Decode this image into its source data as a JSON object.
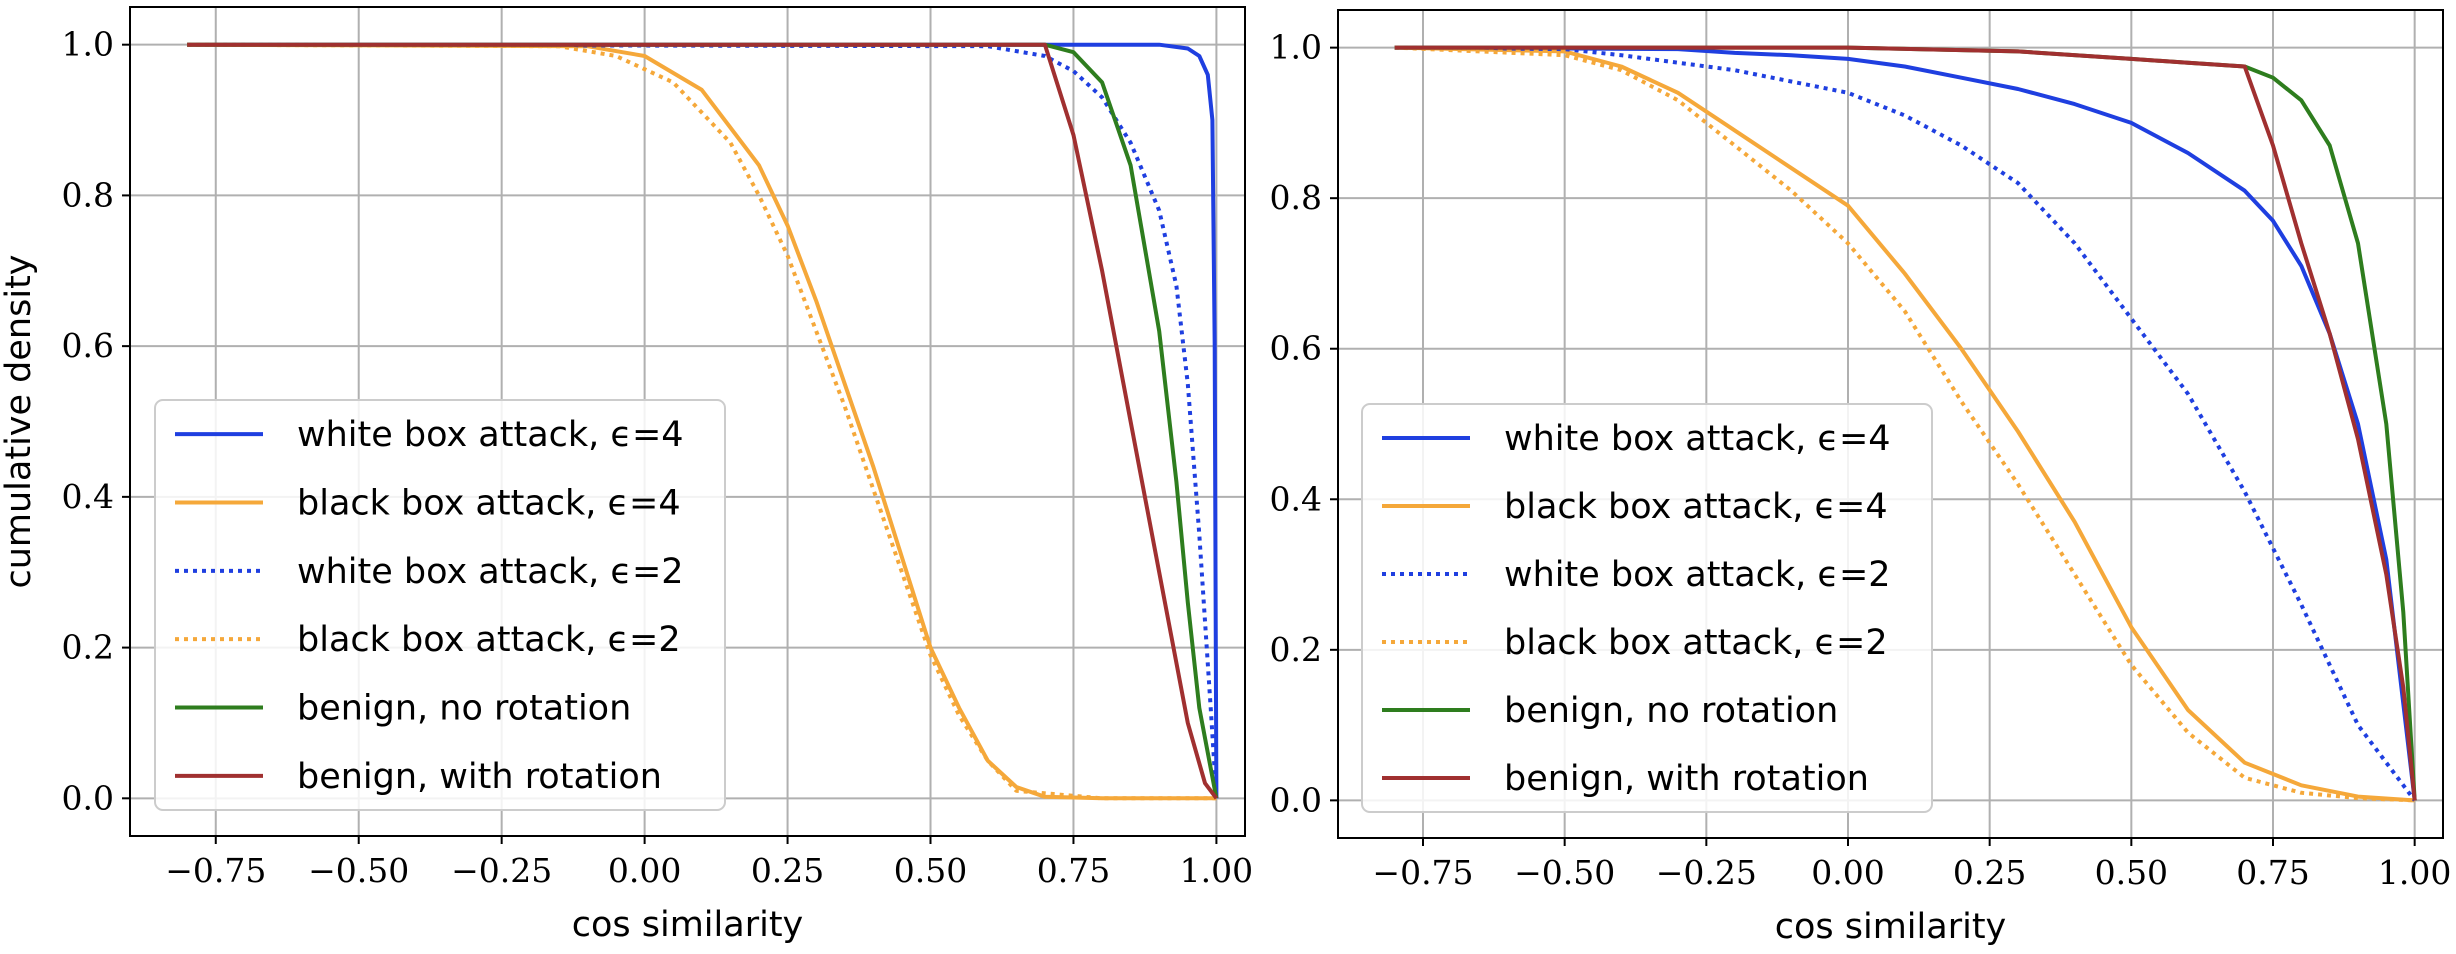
{
  "chart_data": [
    {
      "type": "line",
      "title": "",
      "xlabel": "cos similarity",
      "ylabel": "cumulative density",
      "xlim": [
        -0.9,
        1.05
      ],
      "ylim": [
        -0.05,
        1.05
      ],
      "xticks": [
        -0.75,
        -0.5,
        -0.25,
        0.0,
        0.25,
        0.5,
        0.75,
        1.0
      ],
      "xtick_labels": [
        "−0.75",
        "−0.50",
        "−0.25",
        "0.00",
        "0.25",
        "0.50",
        "0.75",
        "1.00"
      ],
      "yticks": [
        0.0,
        0.2,
        0.4,
        0.6,
        0.8,
        1.0
      ],
      "ytick_labels": [
        "0.0",
        "0.2",
        "0.4",
        "0.6",
        "0.8",
        "1.0"
      ],
      "grid": true,
      "legend": "lower-left",
      "series": [
        {
          "name": "white box attack, ϵ=4",
          "color": "#1f3fe0",
          "dash": "solid",
          "x": [
            -0.8,
            0.9,
            0.95,
            0.97,
            0.985,
            0.993,
            0.997,
            0.999,
            1.0
          ],
          "y": [
            1.0,
            1.0,
            0.995,
            0.985,
            0.96,
            0.9,
            0.6,
            0.2,
            0.0
          ]
        },
        {
          "name": "black box attack, ϵ=4",
          "color": "#f5a83a",
          "dash": "solid",
          "x": [
            -0.8,
            -0.1,
            0.0,
            0.1,
            0.2,
            0.25,
            0.3,
            0.35,
            0.4,
            0.45,
            0.5,
            0.55,
            0.6,
            0.65,
            0.7,
            0.8,
            1.0
          ],
          "y": [
            1.0,
            0.998,
            0.985,
            0.94,
            0.84,
            0.76,
            0.66,
            0.55,
            0.44,
            0.32,
            0.2,
            0.12,
            0.05,
            0.015,
            0.002,
            0.0,
            0.0
          ]
        },
        {
          "name": "white box attack, ϵ=2",
          "color": "#1f3fe0",
          "dash": "dotted",
          "x": [
            -0.8,
            0.6,
            0.7,
            0.75,
            0.8,
            0.85,
            0.9,
            0.93,
            0.95,
            0.97,
            0.99,
            1.0
          ],
          "y": [
            1.0,
            0.998,
            0.985,
            0.965,
            0.93,
            0.87,
            0.78,
            0.68,
            0.55,
            0.35,
            0.12,
            0.0
          ]
        },
        {
          "name": "black box attack, ϵ=2",
          "color": "#f5a83a",
          "dash": "dotted",
          "x": [
            -0.8,
            -0.15,
            -0.05,
            0.05,
            0.15,
            0.2,
            0.25,
            0.3,
            0.35,
            0.4,
            0.45,
            0.5,
            0.55,
            0.6,
            0.65,
            0.8,
            1.0
          ],
          "y": [
            1.0,
            0.998,
            0.985,
            0.95,
            0.87,
            0.8,
            0.72,
            0.62,
            0.52,
            0.41,
            0.3,
            0.19,
            0.11,
            0.05,
            0.01,
            0.0,
            0.0
          ]
        },
        {
          "name": "benign, no rotation",
          "color": "#2e7d1e",
          "dash": "solid",
          "x": [
            -0.8,
            0.7,
            0.75,
            0.8,
            0.85,
            0.9,
            0.93,
            0.95,
            0.97,
            1.0
          ],
          "y": [
            1.0,
            1.0,
            0.99,
            0.95,
            0.84,
            0.62,
            0.42,
            0.26,
            0.12,
            0.0
          ]
        },
        {
          "name": "benign, with rotation",
          "color": "#a03030",
          "dash": "solid",
          "x": [
            -0.8,
            0.7,
            0.75,
            0.8,
            0.85,
            0.9,
            0.95,
            0.98,
            1.0
          ],
          "y": [
            1.0,
            1.0,
            0.88,
            0.7,
            0.5,
            0.3,
            0.1,
            0.02,
            0.0
          ]
        }
      ]
    },
    {
      "type": "line",
      "title": "",
      "xlabel": "cos similarity",
      "ylabel": "",
      "xlim": [
        -0.9,
        1.05
      ],
      "ylim": [
        -0.05,
        1.05
      ],
      "xticks": [
        -0.75,
        -0.5,
        -0.25,
        0.0,
        0.25,
        0.5,
        0.75,
        1.0
      ],
      "xtick_labels": [
        "−0.75",
        "−0.50",
        "−0.25",
        "0.00",
        "0.25",
        "0.50",
        "0.75",
        "1.00"
      ],
      "yticks": [
        0.0,
        0.2,
        0.4,
        0.6,
        0.8,
        1.0
      ],
      "ytick_labels": [
        "0.0",
        "0.2",
        "0.4",
        "0.6",
        "0.8",
        "1.0"
      ],
      "grid": true,
      "legend": "lower-left",
      "series": [
        {
          "name": "white box attack, ϵ=4",
          "color": "#1f3fe0",
          "dash": "solid",
          "x": [
            -0.8,
            -0.3,
            -0.2,
            -0.1,
            0.0,
            0.1,
            0.2,
            0.3,
            0.4,
            0.5,
            0.6,
            0.7,
            0.75,
            0.8,
            0.85,
            0.9,
            0.95,
            1.0
          ],
          "y": [
            1.0,
            0.998,
            0.993,
            0.99,
            0.985,
            0.975,
            0.96,
            0.945,
            0.925,
            0.9,
            0.86,
            0.81,
            0.77,
            0.71,
            0.62,
            0.5,
            0.32,
            0.0
          ]
        },
        {
          "name": "black box attack, ϵ=4",
          "color": "#f5a83a",
          "dash": "solid",
          "x": [
            -0.8,
            -0.5,
            -0.4,
            -0.3,
            -0.2,
            -0.1,
            0.0,
            0.1,
            0.2,
            0.3,
            0.4,
            0.5,
            0.6,
            0.7,
            0.8,
            0.9,
            1.0
          ],
          "y": [
            1.0,
            0.995,
            0.975,
            0.94,
            0.89,
            0.84,
            0.79,
            0.7,
            0.6,
            0.49,
            0.37,
            0.23,
            0.12,
            0.05,
            0.02,
            0.005,
            0.0
          ]
        },
        {
          "name": "white box attack, ϵ=2",
          "color": "#1f3fe0",
          "dash": "dotted",
          "x": [
            -0.8,
            -0.5,
            -0.4,
            -0.3,
            -0.2,
            -0.1,
            0.0,
            0.1,
            0.2,
            0.3,
            0.4,
            0.5,
            0.6,
            0.7,
            0.8,
            0.9,
            1.0
          ],
          "y": [
            1.0,
            0.998,
            0.99,
            0.98,
            0.97,
            0.955,
            0.94,
            0.91,
            0.87,
            0.82,
            0.74,
            0.64,
            0.54,
            0.41,
            0.26,
            0.1,
            0.0
          ]
        },
        {
          "name": "black box attack, ϵ=2",
          "color": "#f5a83a",
          "dash": "dotted",
          "x": [
            -0.8,
            -0.5,
            -0.4,
            -0.3,
            -0.2,
            -0.1,
            0.0,
            0.1,
            0.2,
            0.3,
            0.4,
            0.5,
            0.6,
            0.7,
            0.8,
            0.9,
            1.0
          ],
          "y": [
            1.0,
            0.99,
            0.97,
            0.93,
            0.87,
            0.81,
            0.74,
            0.65,
            0.53,
            0.42,
            0.3,
            0.18,
            0.09,
            0.03,
            0.01,
            0.003,
            0.0
          ]
        },
        {
          "name": "benign, no rotation",
          "color": "#2e7d1e",
          "dash": "solid",
          "x": [
            -0.8,
            0.0,
            0.3,
            0.5,
            0.6,
            0.7,
            0.75,
            0.8,
            0.85,
            0.9,
            0.95,
            0.98,
            1.0
          ],
          "y": [
            1.0,
            1.0,
            0.995,
            0.985,
            0.98,
            0.975,
            0.96,
            0.93,
            0.87,
            0.74,
            0.5,
            0.25,
            0.0
          ]
        },
        {
          "name": "benign, with rotation",
          "color": "#a03030",
          "dash": "solid",
          "x": [
            -0.8,
            0.0,
            0.3,
            0.5,
            0.6,
            0.7,
            0.75,
            0.8,
            0.85,
            0.9,
            0.95,
            0.98,
            1.0
          ],
          "y": [
            1.0,
            1.0,
            0.995,
            0.985,
            0.98,
            0.975,
            0.87,
            0.74,
            0.62,
            0.48,
            0.3,
            0.15,
            0.0
          ]
        }
      ]
    }
  ]
}
